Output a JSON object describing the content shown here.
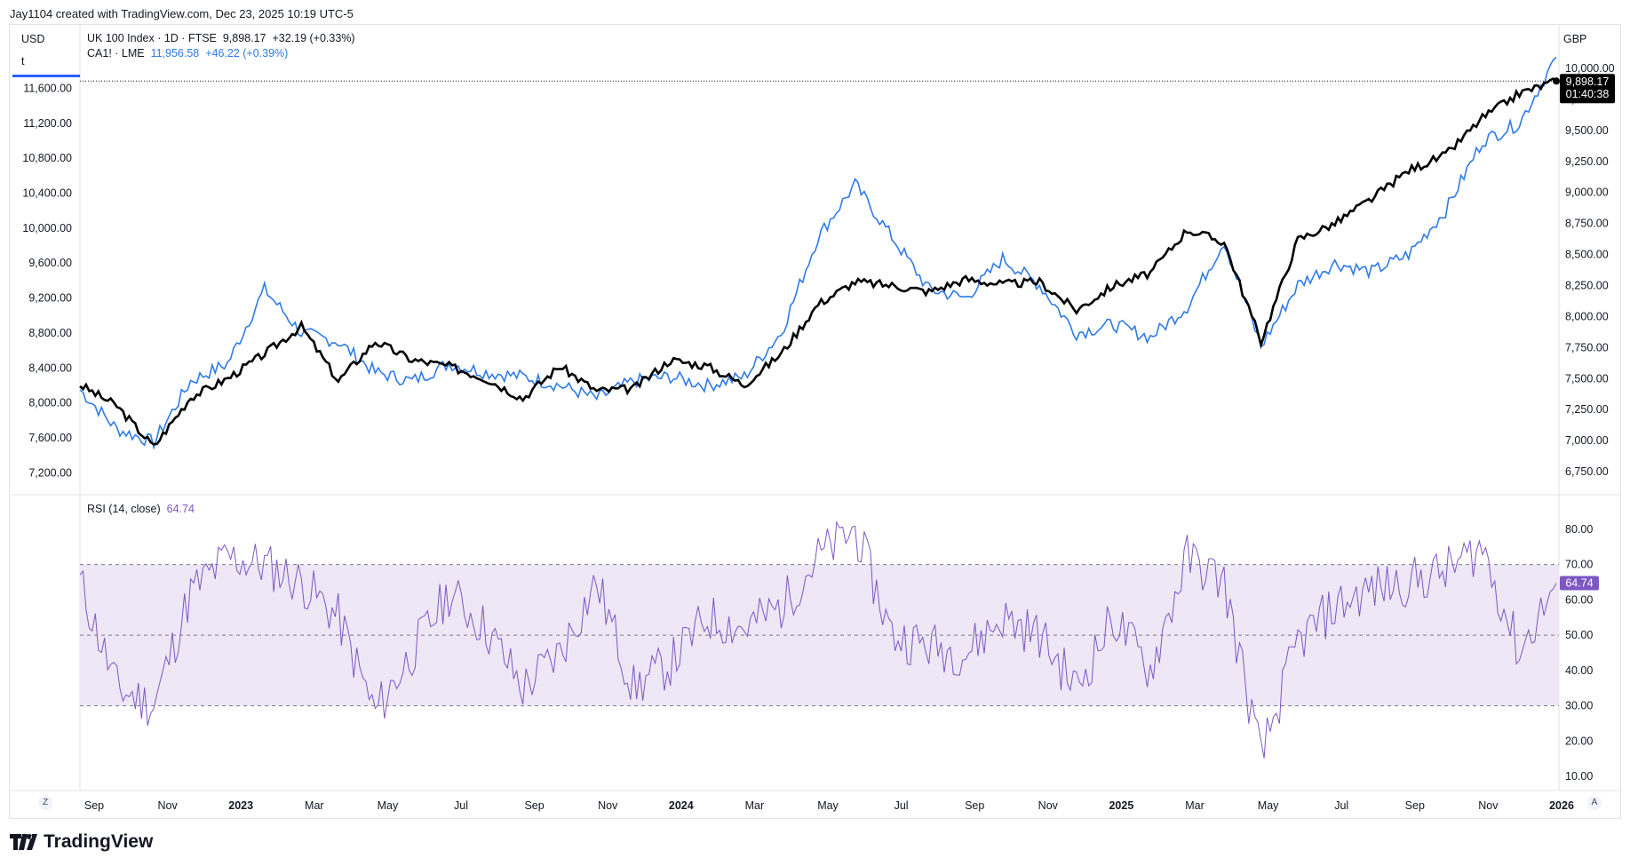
{
  "header": {
    "credit": "Jay1104 created with TradingView.com, Dec 23, 2025 10:19 UTC-5"
  },
  "legend": {
    "line1": "UK 100 Index · 1D · FTSE",
    "line1_value": "9,898.17",
    "line1_change": "+32.19 (+0.33%)",
    "line2": "CA1! · LME",
    "line2_value": "11,956.58",
    "line2_change": "+46.22 (+0.39%)"
  },
  "left_axis": {
    "currency": "USD",
    "field": "t",
    "ticks": [
      "11,600.00",
      "11,200.00",
      "10,800.00",
      "10,400.00",
      "10,000.00",
      "9,600.00",
      "9,200.00",
      "8,800.00",
      "8,400.00",
      "8,000.00",
      "7,600.00",
      "7,200.00"
    ]
  },
  "right_axis": {
    "currency": "GBP",
    "ticks": [
      "10,000.00",
      "9,750.00",
      "9,500.00",
      "9,250.00",
      "9,000.00",
      "8,750.00",
      "8,500.00",
      "8,250.00",
      "8,000.00",
      "7,750.00",
      "7,500.00",
      "7,250.00",
      "7,000.00",
      "6,750.00"
    ]
  },
  "price_tag": {
    "value": "9,898.17",
    "countdown": "01:40:38"
  },
  "rsi": {
    "label": "RSI (14, close)",
    "value": "64.74",
    "ticks": [
      "80.00",
      "70.00",
      "60.00",
      "50.00",
      "40.00",
      "30.00",
      "20.00",
      "10.00"
    ],
    "tag": "64.74"
  },
  "time_axis": {
    "ticks": [
      "Sep",
      "Nov",
      "2023",
      "Mar",
      "May",
      "Jul",
      "Sep",
      "Nov",
      "2024",
      "Mar",
      "May",
      "Jul",
      "Sep",
      "Nov",
      "2025",
      "Mar",
      "May",
      "Jul",
      "Sep",
      "Nov",
      "2026"
    ],
    "z_button": "Z",
    "a_button": "A"
  },
  "brand": "TradingView",
  "colors": {
    "ftse": "#000000",
    "copper": "#2f7be6",
    "rsi": "#7e57c2",
    "rsi_band": "#ede7f6"
  },
  "chart_data": [
    {
      "type": "line",
      "title": "UK 100 Index · 1D · FTSE vs CA1! · LME",
      "x": [
        "2022-08",
        "2022-09",
        "2022-10",
        "2022-11",
        "2022-12",
        "2023-01",
        "2023-02",
        "2023-03",
        "2023-04",
        "2023-05",
        "2023-06",
        "2023-07",
        "2023-08",
        "2023-09",
        "2023-10",
        "2023-11",
        "2023-12",
        "2024-01",
        "2024-02",
        "2024-03",
        "2024-04",
        "2024-05",
        "2024-06",
        "2024-07",
        "2024-08",
        "2024-09",
        "2024-10",
        "2024-11",
        "2024-12",
        "2025-01",
        "2025-02",
        "2025-03",
        "2025-04",
        "2025-05",
        "2025-06",
        "2025-07",
        "2025-08",
        "2025-09",
        "2025-10",
        "2025-11",
        "2025-12"
      ],
      "series": [
        {
          "name": "UK 100 Index",
          "axis": "right",
          "values": [
            7450,
            7280,
            6950,
            7350,
            7500,
            7700,
            7920,
            7480,
            7800,
            7650,
            7600,
            7500,
            7340,
            7600,
            7400,
            7420,
            7650,
            7600,
            7450,
            7700,
            8100,
            8280,
            8250,
            8200,
            8300,
            8260,
            8280,
            8050,
            8250,
            8350,
            8700,
            8600,
            7800,
            8620,
            8750,
            8950,
            9180,
            9300,
            9600,
            9800,
            9898
          ]
        },
        {
          "name": "CA1! · LME",
          "axis": "left",
          "values": [
            8150,
            7700,
            7550,
            8250,
            8450,
            9300,
            8800,
            8700,
            8350,
            8250,
            8450,
            8350,
            8300,
            8200,
            8050,
            8250,
            8300,
            8200,
            8300,
            8800,
            9900,
            10500,
            9900,
            9300,
            9200,
            9650,
            9350,
            8800,
            8900,
            8750,
            9100,
            9850,
            8650,
            9350,
            9600,
            9500,
            9700,
            10200,
            11000,
            11200,
            11957
          ]
        }
      ],
      "ylim_left": [
        7000,
        11900
      ],
      "ylim_right": [
        6600,
        10050
      ]
    },
    {
      "type": "line",
      "title": "RSI (14, close)",
      "x": [
        "2022-08",
        "2022-09",
        "2022-10",
        "2022-11",
        "2022-12",
        "2023-01",
        "2023-02",
        "2023-03",
        "2023-04",
        "2023-05",
        "2023-06",
        "2023-07",
        "2023-08",
        "2023-09",
        "2023-10",
        "2023-11",
        "2023-12",
        "2024-01",
        "2024-02",
        "2024-03",
        "2024-04",
        "2024-05",
        "2024-06",
        "2024-07",
        "2024-08",
        "2024-09",
        "2024-10",
        "2024-11",
        "2024-12",
        "2025-01",
        "2025-02",
        "2025-03",
        "2025-04",
        "2025-05",
        "2025-06",
        "2025-07",
        "2025-08",
        "2025-09",
        "2025-10",
        "2025-11",
        "2025-12"
      ],
      "series": [
        {
          "name": "RSI",
          "values": [
            65,
            35,
            30,
            62,
            72,
            70,
            65,
            55,
            28,
            45,
            62,
            52,
            35,
            45,
            65,
            35,
            42,
            55,
            52,
            58,
            72,
            80,
            50,
            47,
            45,
            55,
            50,
            35,
            55,
            40,
            72,
            65,
            15,
            48,
            58,
            63,
            65,
            68,
            75,
            45,
            64.74
          ]
        }
      ],
      "bands": [
        30,
        50,
        70
      ],
      "ylim": [
        8,
        84
      ]
    }
  ]
}
